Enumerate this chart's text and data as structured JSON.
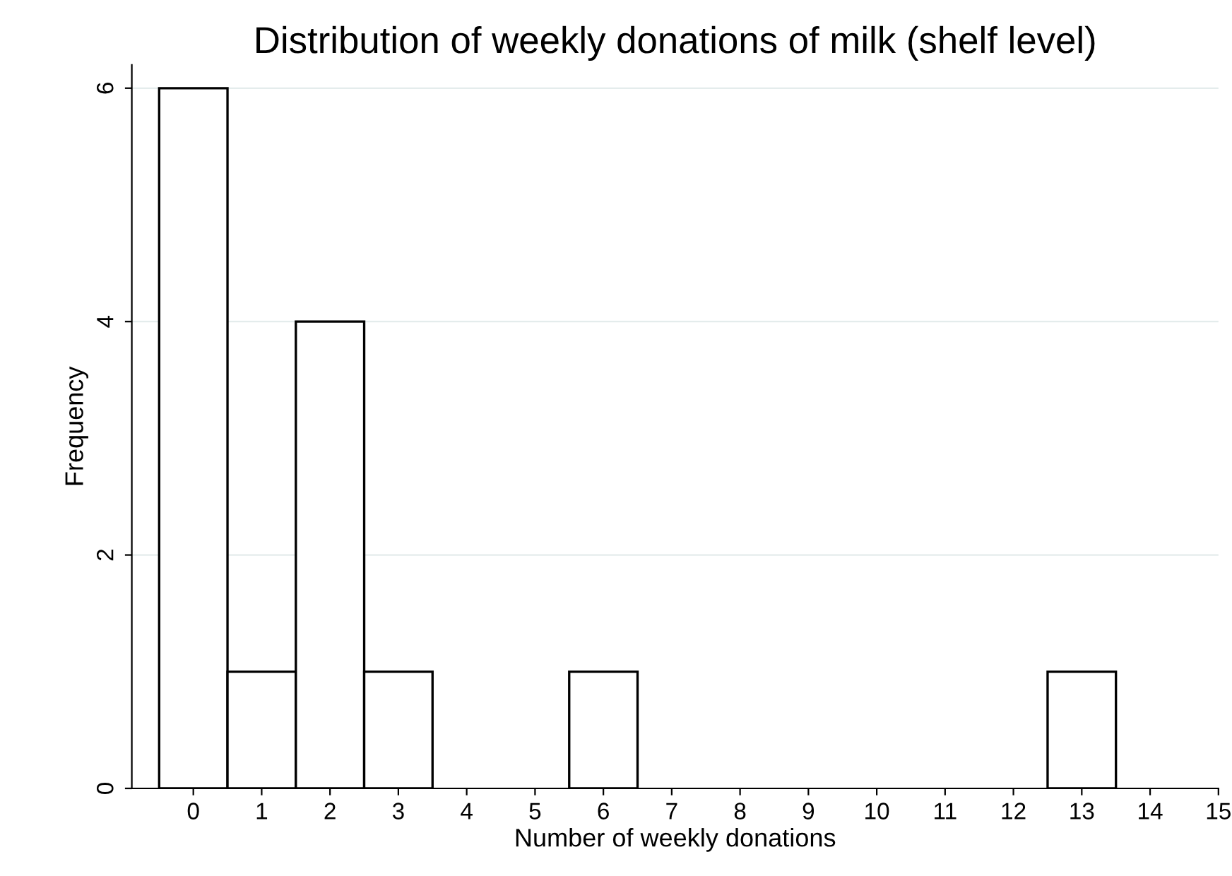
{
  "chart_data": {
    "type": "histogram",
    "title": "Distribution of weekly donations of milk (shelf level)",
    "xlabel": "Number of weekly donations",
    "ylabel": "Frequency",
    "bins": [
      -0.5,
      0.5,
      1.5,
      2.5,
      3.5,
      4.5,
      5.5,
      6.5,
      7.5,
      8.5,
      9.5,
      10.5,
      11.5,
      12.5,
      13.5
    ],
    "values": [
      6,
      1,
      4,
      1,
      0,
      0,
      1,
      0,
      0,
      0,
      0,
      0,
      0,
      1
    ],
    "color": "#ffffff",
    "xlim": [
      -0.9,
      15
    ],
    "xticks": [
      0,
      1,
      2,
      3,
      4,
      5,
      6,
      7,
      8,
      9,
      10,
      11,
      12,
      13,
      14,
      15
    ],
    "ylim": [
      0,
      6.2
    ],
    "yticks": [
      0,
      2,
      4,
      6
    ],
    "grid": "y"
  }
}
